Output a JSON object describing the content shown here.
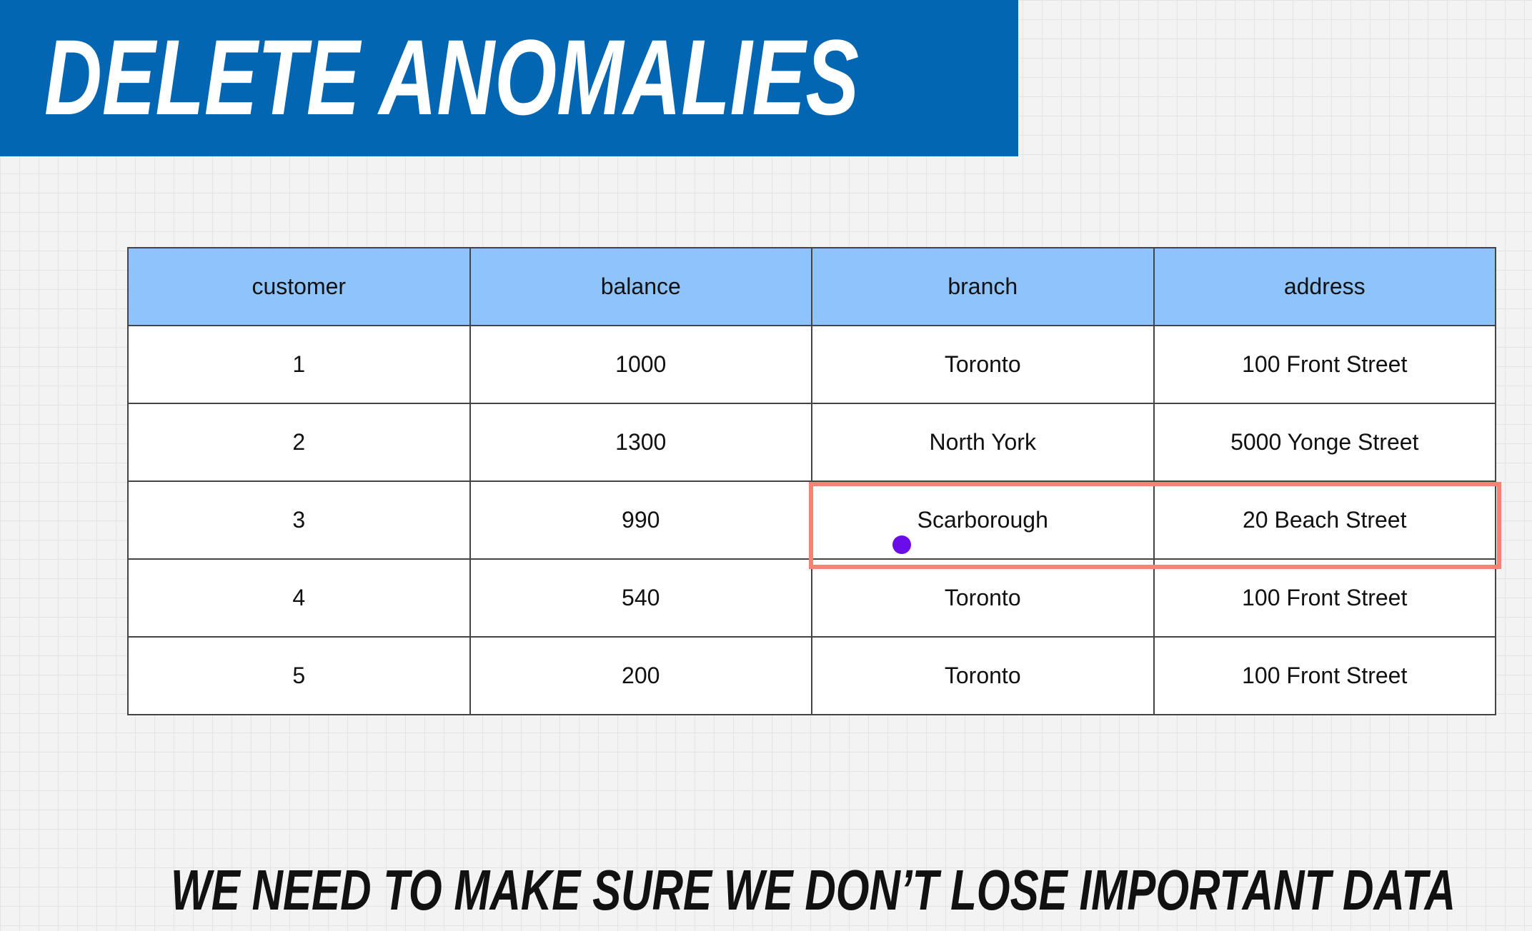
{
  "header": {
    "title": "DELETE ANOMALIES"
  },
  "table": {
    "columns": [
      "customer",
      "balance",
      "branch",
      "address"
    ],
    "rows": [
      [
        1,
        1000,
        "Toronto",
        "100 Front Street"
      ],
      [
        2,
        1300,
        "North York",
        "5000 Yonge Street"
      ],
      [
        3,
        990,
        "Scarborough",
        "20 Beach Street"
      ],
      [
        4,
        540,
        "Toronto",
        "100 Front Street"
      ],
      [
        5,
        200,
        "Toronto",
        "100 Front Street"
      ]
    ]
  },
  "footer": {
    "text": "WE NEED TO MAKE SURE WE DON’T LOSE IMPORTANT DATA"
  }
}
